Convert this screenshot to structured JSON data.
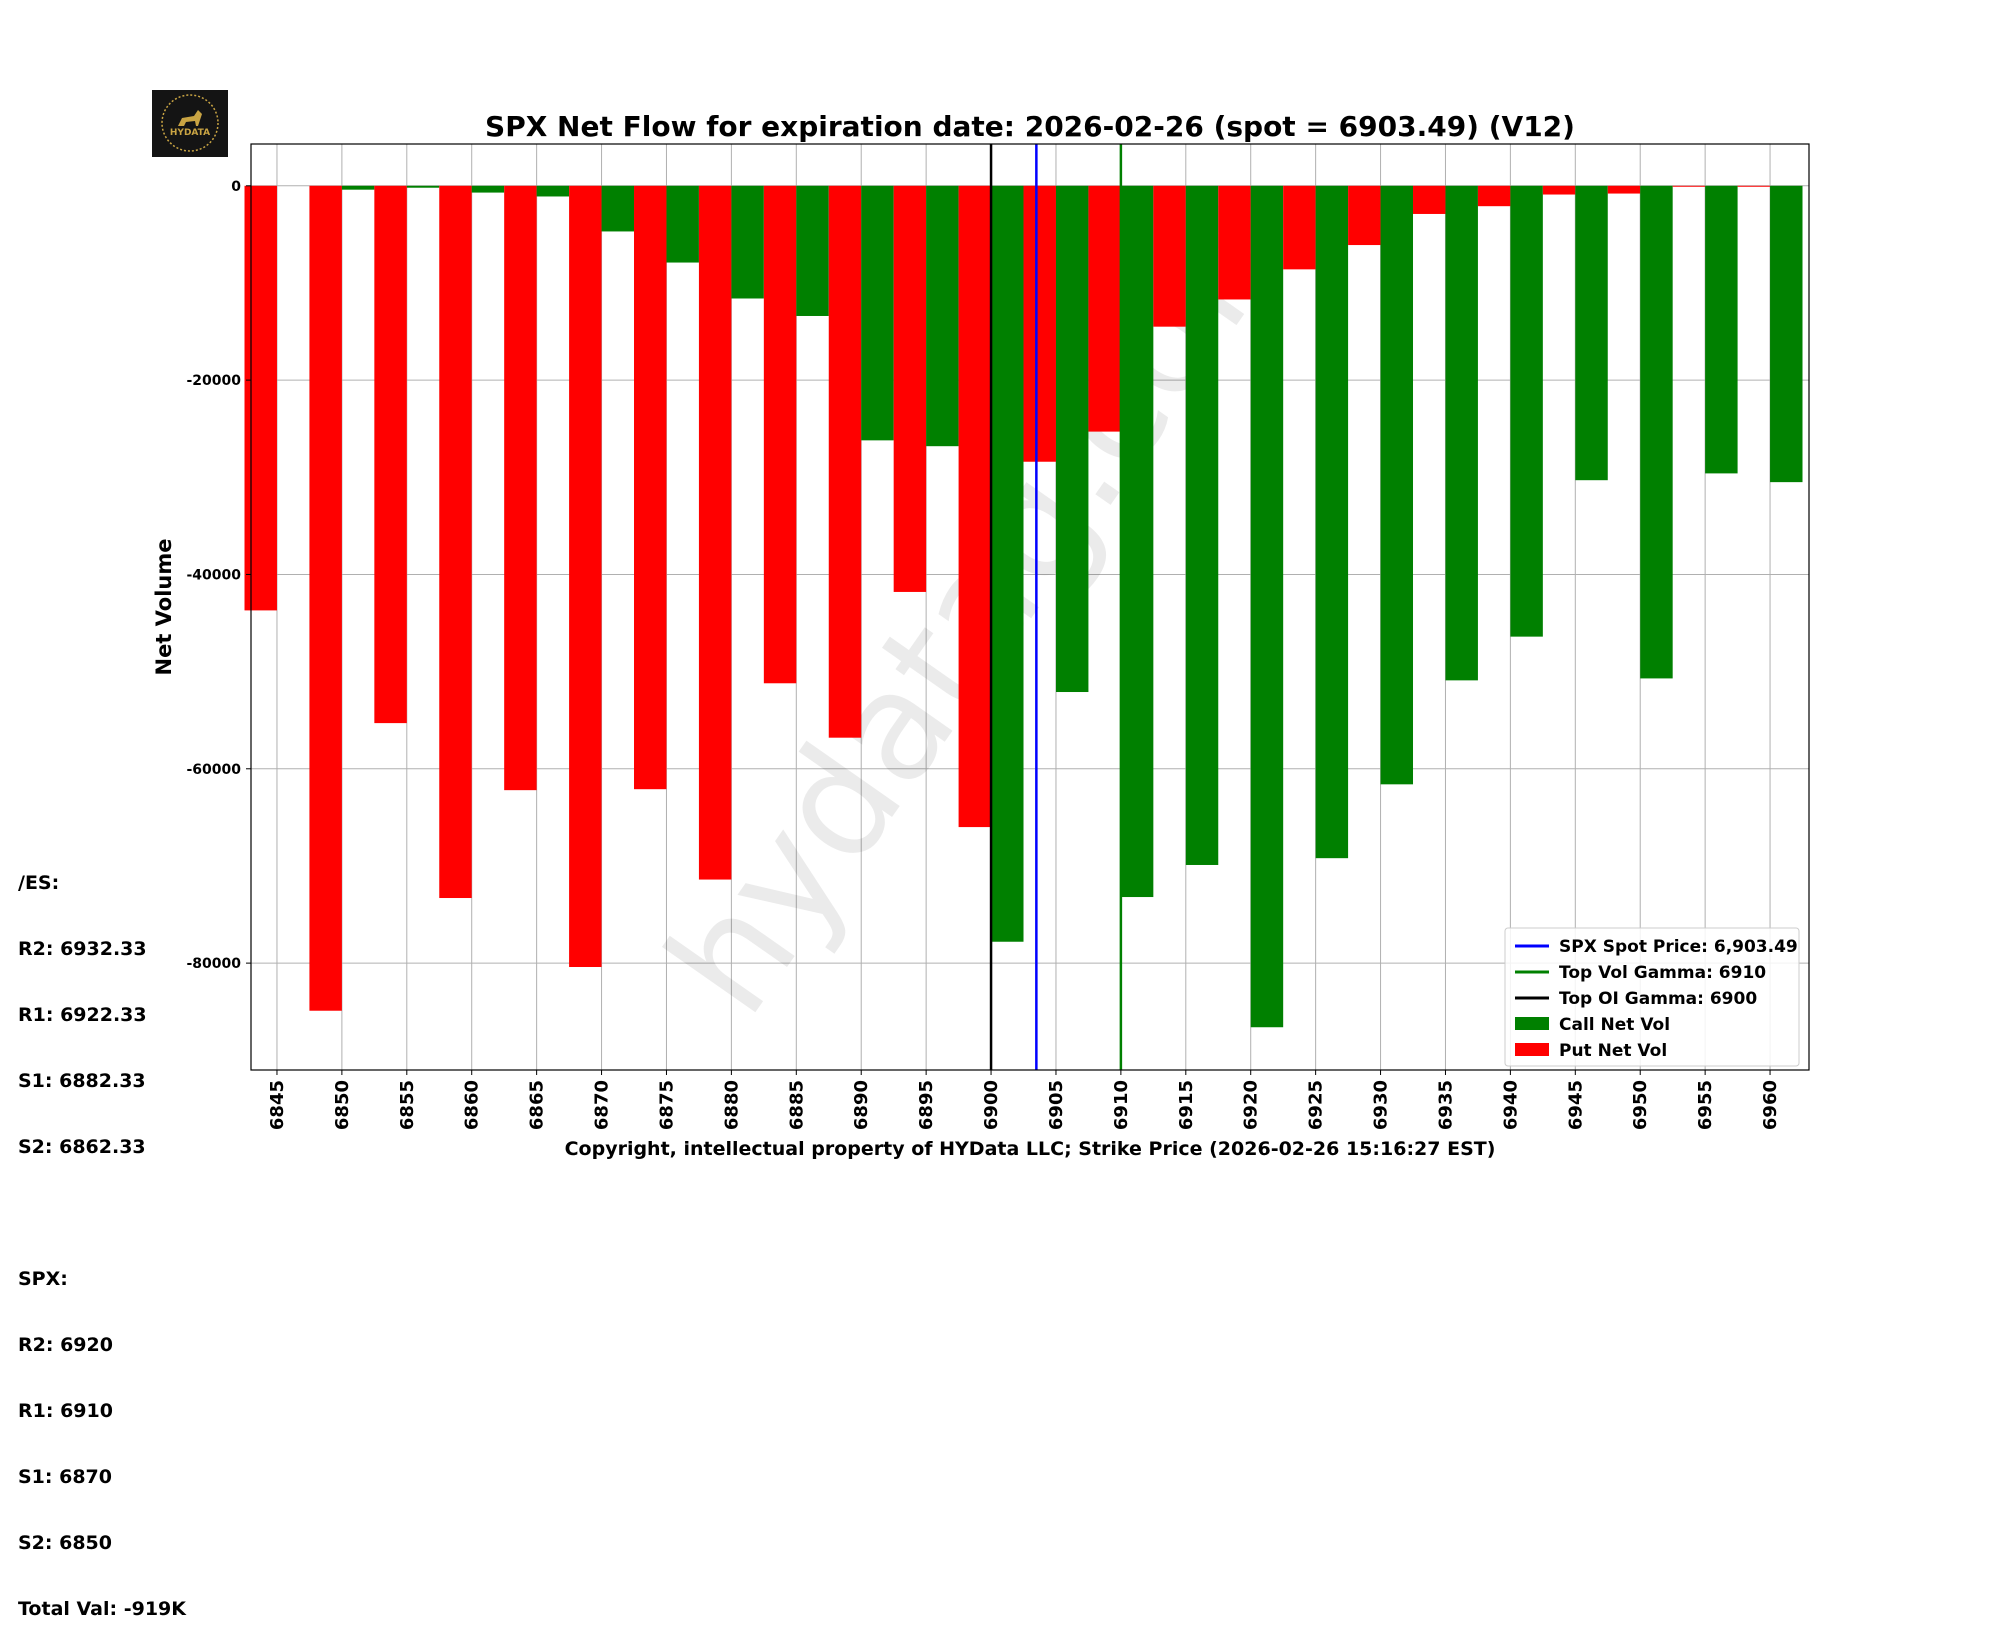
{
  "chart_data": {
    "type": "bar",
    "title": "SPX Net Flow for expiration date: 2026-02-26 (spot = 6903.49) (V12)",
    "xlabel": "Copyright, intellectual property of HYData LLC; Strike Price (2026-02-26 15:16:27 EST)",
    "ylabel": "Net Volume",
    "xlim": [
      6843,
      6963
    ],
    "ylim": [
      -91000,
      4300
    ],
    "grid": true,
    "legend_position": "lower-right",
    "categories": [
      6845,
      6850,
      6855,
      6860,
      6865,
      6870,
      6875,
      6880,
      6885,
      6890,
      6895,
      6900,
      6905,
      6910,
      6915,
      6920,
      6925,
      6930,
      6935,
      6940,
      6945,
      6950,
      6955,
      6960
    ],
    "y_ticks": [
      0,
      -20000,
      -40000,
      -60000,
      -80000
    ],
    "series": [
      {
        "name": "Call Net Vol",
        "color": "#008000",
        "values": [
          0,
          -400,
          -200,
          -700,
          -1100,
          -4700,
          -7900,
          -11600,
          -13400,
          -26200,
          -26800,
          -77800,
          -52100,
          -73200,
          -69900,
          -86600,
          -69200,
          -61600,
          -50900,
          -46400,
          -30300,
          -50700,
          -29600,
          -30500
        ]
      },
      {
        "name": "Put Net Vol",
        "color": "#ff0000",
        "values": [
          -43700,
          -84900,
          -55300,
          -73300,
          -62200,
          -80400,
          -62100,
          -71400,
          -51200,
          -56800,
          -41800,
          -66000,
          -28400,
          -25300,
          -14500,
          -11700,
          -8600,
          -6100,
          -2900,
          -2100,
          -900,
          -800,
          -100,
          -100
        ]
      }
    ],
    "vlines": [
      {
        "name": "SPX Spot Price: 6,903.49",
        "x": 6903.49,
        "color": "#0000ff"
      },
      {
        "name": "Top Vol Gamma: 6910",
        "x": 6910,
        "color": "#008000"
      },
      {
        "name": "Top OI Gamma: 6900",
        "x": 6900,
        "color": "#000000"
      }
    ],
    "watermark": "hydatag.com"
  },
  "logo": "HYDATA",
  "levels": {
    "es_header": "/ES:",
    "es": [
      "R2: 6932.33",
      "R1: 6922.33",
      "S1: 6882.33",
      "S2: 6862.33"
    ],
    "spx_header": "SPX:",
    "spx": [
      "R2: 6920",
      "R1: 6910",
      "S1: 6870",
      "S2: 6850"
    ],
    "total": "Total Val: -919K"
  }
}
